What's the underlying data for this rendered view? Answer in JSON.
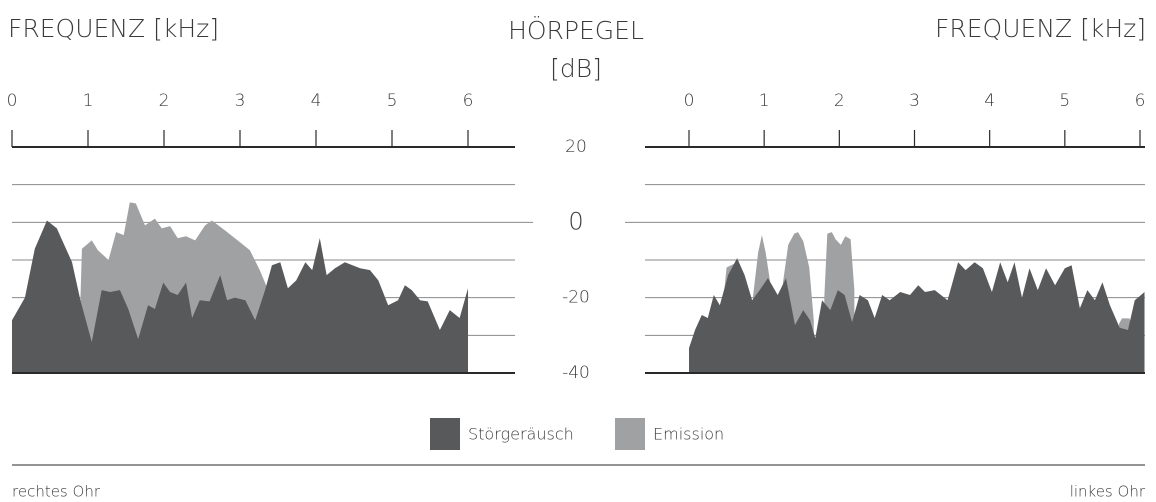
{
  "chart_data": {
    "type": "area",
    "y_label": "HÖRPEGEL [dB]",
    "ylim": [
      -40,
      20
    ],
    "yticks": [
      -40,
      -20,
      0,
      20
    ],
    "ygrid": [
      -30,
      -20,
      -10,
      0,
      10
    ],
    "legend": [
      {
        "name": "Störgeräusch",
        "color": "#58595b"
      },
      {
        "name": "Emission",
        "color": "#a0a1a3"
      }
    ],
    "panels": [
      {
        "title": "FREQUENZ [kHz]",
        "caption": "rechtes Ohr",
        "xlim": [
          0,
          6
        ],
        "xticks": [
          0,
          1,
          2,
          3,
          4,
          5,
          6
        ],
        "series": [
          {
            "x": [
              0,
              0.17,
              0.3,
              0.46,
              0.59,
              0.79,
              0.9,
              1.05,
              1.18,
              1.29,
              1.42,
              1.53,
              1.66,
              1.79,
              1.88,
              1.99,
              2.08,
              2.18,
              2.29,
              2.37,
              2.47,
              2.6,
              2.74,
              2.83,
              2.93,
              3.07,
              3.2,
              3.33,
              3.42,
              3.53,
              3.63,
              3.74,
              3.86,
              3.95,
              4.05,
              4.14,
              4.25,
              4.38,
              4.58,
              4.71,
              4.82,
              4.95,
              5.08,
              5.17,
              5.26,
              5.37,
              5.47,
              5.63,
              5.76,
              5.89,
              6
            ],
            "values": [
              -26,
              -20,
              -7,
              0.5,
              -1.6,
              -10.6,
              -20.7,
              -31.8,
              -18,
              -18.5,
              -18,
              -23,
              -31,
              -22,
              -23,
              -16,
              -18.5,
              -19.3,
              -16,
              -25.4,
              -20.7,
              -21,
              -14,
              -20.7,
              -20,
              -20.7,
              -26,
              -18,
              -11.4,
              -10.6,
              -17.5,
              -15.4,
              -10.6,
              -12.7,
              -4.2,
              -14,
              -12.2,
              -10.6,
              -12.2,
              -12.7,
              -15.4,
              -22,
              -20.7,
              -16.7,
              -18,
              -20.7,
              -21,
              -28.6,
              -23.3,
              -25.4,
              -17.5
            ]
          },
          {
            "x": [
              0.9,
              0.92,
              1.05,
              1.13,
              1.27,
              1.37,
              1.47,
              1.55,
              1.63,
              1.75,
              1.88,
              1.97,
              2.08,
              2.18,
              2.29,
              2.41,
              2.54,
              2.63,
              2.8,
              3,
              3.13,
              3.26,
              3.37
            ],
            "values": [
              -20.7,
              -7,
              -4.8,
              -7.4,
              -10,
              -2.6,
              -3.4,
              5.3,
              5,
              -0.8,
              1,
              -1.6,
              -1,
              -4.2,
              -3.7,
              -4.8,
              -0.8,
              0.5,
              -2.1,
              -5.3,
              -7.4,
              -12.7,
              -18
            ]
          }
        ]
      },
      {
        "title": "FREQUENZ [kHz]",
        "caption": "linkes Ohr",
        "xlim": [
          0,
          6
        ],
        "xticks": [
          0,
          1,
          2,
          3,
          4,
          5,
          6
        ],
        "series": [
          {
            "x": [
              0,
              0.08,
              0.17,
              0.25,
              0.33,
              0.41,
              0.52,
              0.64,
              0.74,
              0.84,
              0.94,
              1.05,
              1.18,
              1.29,
              1.41,
              1.52,
              1.61,
              1.68,
              1.77,
              1.88,
              1.98,
              2.07,
              2.17,
              2.27,
              2.38,
              2.47,
              2.57,
              2.67,
              2.81,
              2.94,
              3.05,
              3.14,
              3.27,
              3.44,
              3.58,
              3.68,
              3.8,
              3.91,
              4.03,
              4.14,
              4.24,
              4.33,
              4.43,
              4.53,
              4.64,
              4.75,
              4.87,
              5,
              5.09,
              5.2,
              5.3,
              5.4,
              5.5,
              5.6,
              5.73,
              5.84,
              5.93,
              6.06
            ],
            "values": [
              -33.4,
              -28.6,
              -24.6,
              -25.4,
              -19.3,
              -22,
              -14,
              -9.5,
              -14,
              -20.7,
              -18,
              -14.8,
              -19.3,
              -14.8,
              -27.3,
              -23.3,
              -26,
              -30.7,
              -20.7,
              -23.3,
              -18,
              -19.3,
              -26.5,
              -19.3,
              -20.7,
              -25.4,
              -19.3,
              -20.7,
              -18.5,
              -19.3,
              -16.7,
              -18.5,
              -18,
              -20.7,
              -10.6,
              -12.7,
              -10.6,
              -12.2,
              -18.5,
              -10.6,
              -15.9,
              -10.6,
              -20,
              -12.2,
              -18,
              -12.2,
              -16.7,
              -12.2,
              -11.4,
              -22.8,
              -18,
              -20.7,
              -15.9,
              -22,
              -28,
              -28.6,
              -20.7,
              -18.5
            ]
          },
          {
            "x": [
              0.45,
              0.5,
              0.6,
              0.7,
              null,
              0.85,
              0.92,
              0.97,
              1.02,
              1.08,
              null,
              1.25,
              1.32,
              1.4,
              1.45,
              1.52,
              1.6,
              1.66,
              null,
              1.8,
              1.84,
              1.9,
              1.95,
              2.02,
              2.08,
              2.15,
              2.2,
              null,
              5.72,
              5.76,
              5.86,
              5.9
            ],
            "values": [
              -22,
              -12,
              -11,
              -15,
              null,
              -20,
              -8,
              -3.4,
              -8,
              -16,
              null,
              -16,
              -6,
              -3,
              -2.6,
              -5,
              -12,
              -26,
              null,
              -20,
              -3,
              -2.6,
              -4.5,
              -6,
              -3.7,
              -4.5,
              -18,
              null,
              -27,
              -25.5,
              -25.5,
              -28
            ]
          }
        ]
      }
    ]
  }
}
